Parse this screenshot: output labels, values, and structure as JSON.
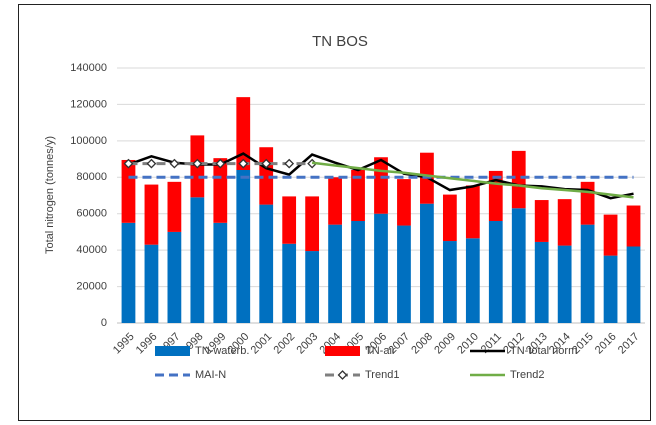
{
  "chart_data": {
    "type": "bar",
    "title": "TN BOS",
    "y_label": "Total nitrogen (tonnes/y)",
    "categories": [
      "1995",
      "1996",
      "1997",
      "1998",
      "1999",
      "2000",
      "2001",
      "2002",
      "2003",
      "2004",
      "2005",
      "2006",
      "2007",
      "2008",
      "2009",
      "2010",
      "2011",
      "2012",
      "2013",
      "2014",
      "2015",
      "2016",
      "2017"
    ],
    "ylim": [
      0,
      140000
    ],
    "yticks": [
      0,
      20000,
      40000,
      60000,
      80000,
      100000,
      120000,
      140000
    ],
    "grid": true,
    "stacked": true,
    "legend": "bottom",
    "series": [
      {
        "name": "TN-waterb.",
        "kind": "bar",
        "color": "#0070c0",
        "values": [
          55000,
          43000,
          50000,
          69000,
          55000,
          84000,
          65000,
          43500,
          39500,
          54000,
          56000,
          60000,
          53500,
          65500,
          45000,
          46500,
          56000,
          63000,
          44500,
          42500,
          54000,
          37000,
          42000
        ]
      },
      {
        "name": "TN-air",
        "kind": "bar",
        "color": "#ff0000",
        "values": [
          34500,
          33000,
          27500,
          34000,
          35500,
          40000,
          31500,
          26000,
          30000,
          26000,
          28000,
          31000,
          25500,
          28000,
          25500,
          29000,
          27500,
          31500,
          23000,
          25500,
          23500,
          22500,
          22500
        ]
      },
      {
        "name": "TN-total norm",
        "kind": "line",
        "color": "#000000",
        "values": [
          87000,
          91500,
          88000,
          87000,
          87000,
          93000,
          85000,
          81500,
          92500,
          88000,
          84000,
          89500,
          82000,
          80000,
          73000,
          75000,
          78500,
          75500,
          75000,
          73500,
          73000,
          68500,
          71000
        ]
      },
      {
        "name": "MAI-N",
        "kind": "line",
        "color": "#4472c4",
        "dashed": true,
        "values": [
          80000,
          80000,
          80000,
          80000,
          80000,
          80000,
          80000,
          80000,
          80000,
          80000,
          80000,
          80000,
          80000,
          80000,
          80000,
          80000,
          80000,
          80000,
          80000,
          80000,
          80000,
          80000,
          80000
        ]
      },
      {
        "name": "Trend1",
        "kind": "line",
        "color": "#7f7f7f",
        "dashed": true,
        "marker": "diamond",
        "values": [
          87500,
          87500,
          87500,
          87500,
          87500,
          87500,
          87500,
          87500,
          87500,
          null,
          null,
          null,
          null,
          null,
          null,
          null,
          null,
          null,
          null,
          null,
          null,
          null,
          null
        ]
      },
      {
        "name": "Trend2",
        "kind": "line",
        "color": "#70ad47",
        "values": [
          null,
          null,
          null,
          null,
          null,
          null,
          null,
          null,
          88000,
          86500,
          85000,
          83500,
          82500,
          81000,
          79500,
          78000,
          76500,
          75500,
          74000,
          73000,
          72000,
          70500,
          69000
        ]
      }
    ]
  }
}
